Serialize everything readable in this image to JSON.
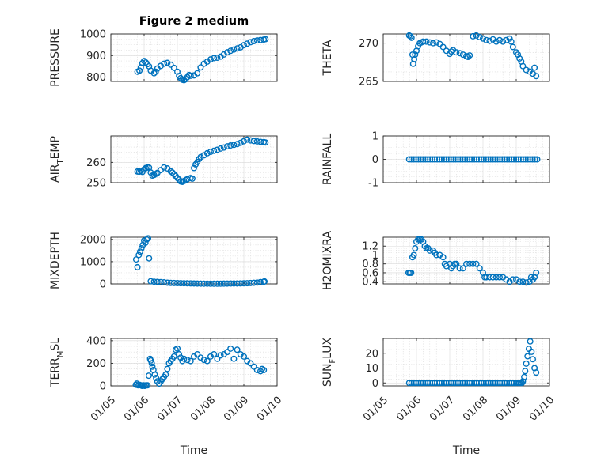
{
  "figure": {
    "title": "Figure 2 medium",
    "marker_color": "#0072bd",
    "xlabel": "Time",
    "x_ticklabels": [
      "01/05",
      "01/06",
      "01/07",
      "01/08",
      "01/09",
      "01/10"
    ]
  },
  "chart_data": [
    {
      "type": "scatter",
      "title": "Figure 2 medium",
      "ylabel": "PRESSURE",
      "xlabel": "",
      "grid": true,
      "ylim": [
        780,
        1000
      ],
      "yticks": [
        800,
        900,
        1000
      ],
      "yticklabels": [
        "800",
        "900",
        "1000"
      ],
      "xlim": [
        "01/05",
        "01/10"
      ],
      "x_unit": "days",
      "x": [
        5.8,
        5.86,
        5.9,
        5.95,
        6.0,
        6.05,
        6.1,
        6.15,
        6.2,
        6.3,
        6.35,
        6.4,
        6.5,
        6.6,
        6.7,
        6.8,
        6.9,
        7.0,
        7.05,
        7.1,
        7.15,
        7.2,
        7.25,
        7.3,
        7.35,
        7.4,
        7.5,
        7.6,
        7.7,
        7.8,
        7.9,
        8.0,
        8.1,
        8.2,
        8.3,
        8.4,
        8.5,
        8.6,
        8.7,
        8.8,
        8.9,
        9.0,
        9.1,
        9.2,
        9.3,
        9.4,
        9.5,
        9.6,
        9.65
      ],
      "y": [
        825,
        830,
        845,
        865,
        875,
        868,
        860,
        850,
        830,
        818,
        825,
        840,
        852,
        862,
        866,
        858,
        843,
        825,
        805,
        795,
        788,
        786,
        790,
        800,
        810,
        806,
        808,
        818,
        845,
        862,
        872,
        882,
        888,
        890,
        895,
        905,
        915,
        922,
        928,
        933,
        938,
        948,
        955,
        962,
        967,
        970,
        972,
        974,
        976
      ]
    },
    {
      "type": "scatter",
      "title": "",
      "ylabel": "THETA",
      "xlabel": "",
      "grid": true,
      "ylim": [
        265,
        271.2
      ],
      "yticks": [
        265,
        270
      ],
      "yticklabels": [
        "265",
        "270"
      ],
      "xlim": [
        "01/05",
        "01/10"
      ],
      "x_unit": "days",
      "x": [
        5.78,
        5.82,
        5.85,
        5.88,
        5.9,
        5.93,
        5.96,
        6.0,
        6.05,
        6.1,
        6.15,
        6.2,
        6.3,
        6.4,
        6.5,
        6.6,
        6.7,
        6.8,
        6.9,
        7.0,
        7.05,
        7.1,
        7.2,
        7.3,
        7.4,
        7.5,
        7.55,
        7.6,
        7.7,
        7.8,
        7.9,
        8.0,
        8.1,
        8.2,
        8.3,
        8.4,
        8.5,
        8.6,
        8.7,
        8.8,
        8.85,
        8.9,
        9.0,
        9.05,
        9.1,
        9.15,
        9.2,
        9.3,
        9.4,
        9.5,
        9.55,
        9.6
      ],
      "y": [
        271,
        270.9,
        270.7,
        268.5,
        267.3,
        267.9,
        268.5,
        269,
        269.6,
        270,
        270.1,
        270.2,
        270.2,
        270.1,
        270,
        270.1,
        269.9,
        269.5,
        269,
        268.6,
        268.9,
        269.1,
        268.8,
        268.7,
        268.5,
        268.3,
        268.2,
        268.4,
        270.9,
        271,
        270.8,
        270.6,
        270.4,
        270.3,
        270.5,
        270.2,
        270.4,
        270.2,
        270.4,
        270.6,
        270.2,
        269.5,
        268.8,
        268.5,
        268,
        267.6,
        267,
        266.5,
        266.3,
        266,
        266.8,
        265.7
      ]
    },
    {
      "type": "scatter",
      "title": "",
      "ylabel": "AIR_TEMP",
      "xlabel": "",
      "grid": true,
      "ylim": [
        250,
        273
      ],
      "yticks": [
        250,
        260
      ],
      "yticklabels": [
        "250",
        "260"
      ],
      "xlim": [
        "01/05",
        "01/10"
      ],
      "x_unit": "days",
      "x": [
        5.8,
        5.85,
        5.9,
        5.95,
        6.0,
        6.05,
        6.1,
        6.15,
        6.2,
        6.25,
        6.3,
        6.35,
        6.4,
        6.5,
        6.6,
        6.7,
        6.8,
        6.85,
        6.9,
        6.95,
        7.0,
        7.05,
        7.1,
        7.15,
        7.2,
        7.25,
        7.3,
        7.4,
        7.45,
        7.5,
        7.55,
        7.6,
        7.65,
        7.7,
        7.8,
        7.9,
        8.0,
        8.1,
        8.2,
        8.3,
        8.4,
        8.5,
        8.6,
        8.7,
        8.8,
        8.9,
        9.0,
        9.1,
        9.2,
        9.3,
        9.4,
        9.5,
        9.6,
        9.65
      ],
      "y": [
        255.5,
        255.4,
        255.8,
        255.3,
        256.5,
        257.2,
        257.5,
        257.4,
        255,
        253.5,
        253.8,
        254.3,
        254.8,
        256.2,
        257.5,
        257,
        255.6,
        255,
        254.2,
        253.3,
        252.3,
        251.5,
        250.6,
        250.4,
        250.8,
        251.3,
        251.7,
        252.3,
        252,
        257.2,
        259,
        260.2,
        261.6,
        262.6,
        263.5,
        264.5,
        265.2,
        265.7,
        266.2,
        266.8,
        267.3,
        267.9,
        268.3,
        268.6,
        269,
        269.6,
        270.4,
        271.2,
        270.8,
        270.5,
        270.3,
        270.1,
        270,
        269.8
      ]
    },
    {
      "type": "scatter",
      "title": "",
      "ylabel": "RAINFALL",
      "xlabel": "",
      "grid": true,
      "ylim": [
        -1,
        1
      ],
      "yticks": [
        -1,
        0,
        1
      ],
      "yticklabels": [
        "-1",
        "0",
        "1"
      ],
      "xlim": [
        "01/05",
        "01/10"
      ],
      "x_unit": "days",
      "series_note": "constant",
      "x": [
        5.78,
        5.85,
        5.92,
        5.99,
        6.06,
        6.13,
        6.2,
        6.27,
        6.34,
        6.41,
        6.48,
        6.55,
        6.62,
        6.69,
        6.76,
        6.83,
        6.9,
        6.97,
        7.04,
        7.11,
        7.18,
        7.25,
        7.32,
        7.39,
        7.46,
        7.53,
        7.6,
        7.67,
        7.74,
        7.81,
        7.88,
        7.95,
        8.02,
        8.09,
        8.16,
        8.23,
        8.3,
        8.37,
        8.44,
        8.51,
        8.58,
        8.65,
        8.72,
        8.79,
        8.86,
        8.93,
        9.0,
        9.07,
        9.14,
        9.21,
        9.28,
        9.35,
        9.42,
        9.49,
        9.56,
        9.63
      ],
      "y": [
        0,
        0,
        0,
        0,
        0,
        0,
        0,
        0,
        0,
        0,
        0,
        0,
        0,
        0,
        0,
        0,
        0,
        0,
        0,
        0,
        0,
        0,
        0,
        0,
        0,
        0,
        0,
        0,
        0,
        0,
        0,
        0,
        0,
        0,
        0,
        0,
        0,
        0,
        0,
        0,
        0,
        0,
        0,
        0,
        0,
        0,
        0,
        0,
        0,
        0,
        0,
        0,
        0,
        0,
        0,
        0
      ]
    },
    {
      "type": "scatter",
      "title": "",
      "ylabel": "MIXDEPTH",
      "xlabel": "",
      "grid": true,
      "ylim": [
        0,
        2100
      ],
      "yticks": [
        0,
        1000,
        2000
      ],
      "yticklabels": [
        "0",
        "1000",
        "2000"
      ],
      "xlim": [
        "01/05",
        "01/10"
      ],
      "x_unit": "days",
      "x": [
        5.76,
        5.8,
        5.84,
        5.88,
        5.92,
        5.96,
        6.0,
        6.04,
        6.08,
        6.12,
        6.15,
        6.2,
        6.3,
        6.4,
        6.5,
        6.6,
        6.7,
        6.8,
        6.9,
        7.0,
        7.1,
        7.2,
        7.3,
        7.4,
        7.5,
        7.6,
        7.7,
        7.8,
        7.9,
        8.0,
        8.1,
        8.2,
        8.3,
        8.4,
        8.5,
        8.6,
        8.7,
        8.8,
        8.9,
        9.0,
        9.1,
        9.2,
        9.3,
        9.4,
        9.5,
        9.6,
        9.62
      ],
      "y": [
        1100,
        750,
        1300,
        1450,
        1600,
        1750,
        1950,
        1850,
        2000,
        2050,
        1150,
        120,
        100,
        90,
        80,
        70,
        55,
        45,
        40,
        35,
        30,
        28,
        25,
        22,
        20,
        15,
        12,
        10,
        10,
        8,
        8,
        8,
        10,
        12,
        15,
        18,
        20,
        20,
        22,
        25,
        30,
        40,
        50,
        60,
        80,
        100,
        110
      ]
    },
    {
      "type": "scatter",
      "title": "",
      "ylabel": "H2OMIXRA",
      "xlabel": "",
      "grid": true,
      "ylim": [
        0.35,
        1.4
      ],
      "yticks": [
        0.4,
        0.6,
        0.8,
        1,
        1.2
      ],
      "yticklabels": [
        "0.4",
        "0.6",
        "0.8",
        "1",
        "1.2"
      ],
      "xlim": [
        "01/05",
        "01/10"
      ],
      "x_unit": "days",
      "x": [
        5.76,
        5.8,
        5.84,
        5.88,
        5.92,
        5.96,
        6.0,
        6.05,
        6.1,
        6.15,
        6.2,
        6.25,
        6.3,
        6.35,
        6.4,
        6.5,
        6.55,
        6.6,
        6.7,
        6.8,
        6.85,
        6.9,
        7.0,
        7.05,
        7.1,
        7.15,
        7.2,
        7.3,
        7.4,
        7.5,
        7.6,
        7.7,
        7.8,
        7.9,
        8.0,
        8.05,
        8.1,
        8.2,
        8.3,
        8.4,
        8.5,
        8.6,
        8.7,
        8.8,
        8.9,
        9.0,
        9.1,
        9.2,
        9.3,
        9.4,
        9.45,
        9.5,
        9.55,
        9.6
      ],
      "y": [
        0.6,
        0.6,
        0.6,
        0.95,
        1.0,
        1.15,
        1.3,
        1.35,
        1.35,
        1.35,
        1.3,
        1.2,
        1.15,
        1.15,
        1.1,
        1.1,
        1.05,
        1.0,
        1.0,
        0.95,
        0.8,
        0.75,
        0.8,
        0.7,
        0.75,
        0.8,
        0.8,
        0.7,
        0.7,
        0.8,
        0.8,
        0.8,
        0.8,
        0.7,
        0.6,
        0.5,
        0.5,
        0.5,
        0.5,
        0.5,
        0.5,
        0.5,
        0.45,
        0.4,
        0.45,
        0.45,
        0.4,
        0.4,
        0.38,
        0.4,
        0.5,
        0.45,
        0.5,
        0.6
      ]
    },
    {
      "type": "scatter",
      "title": "",
      "ylabel": "TERR_MSL",
      "xlabel": "Time",
      "grid": true,
      "ylim": [
        0,
        420
      ],
      "yticks": [
        0,
        200,
        400
      ],
      "yticklabels": [
        "0",
        "200",
        "400"
      ],
      "xlim": [
        "01/05",
        "01/10"
      ],
      "x_unit": "days",
      "xticklabels": [
        "01/05",
        "01/06",
        "01/07",
        "01/08",
        "01/09",
        "01/10"
      ],
      "x": [
        5.75,
        5.78,
        5.82,
        5.86,
        5.9,
        5.94,
        5.98,
        6.02,
        6.06,
        6.1,
        6.14,
        6.18,
        6.2,
        6.23,
        6.25,
        6.28,
        6.32,
        6.36,
        6.4,
        6.45,
        6.5,
        6.55,
        6.6,
        6.65,
        6.7,
        6.75,
        6.8,
        6.85,
        6.9,
        6.95,
        7.0,
        7.05,
        7.1,
        7.15,
        7.2,
        7.3,
        7.4,
        7.5,
        7.6,
        7.7,
        7.8,
        7.9,
        8.0,
        8.1,
        8.2,
        8.3,
        8.4,
        8.5,
        8.6,
        8.7,
        8.8,
        8.9,
        9.0,
        9.1,
        9.2,
        9.3,
        9.4,
        9.5,
        9.55,
        9.6
      ],
      "y": [
        10,
        20,
        5,
        10,
        5,
        0,
        5,
        0,
        5,
        5,
        90,
        240,
        225,
        200,
        170,
        140,
        100,
        70,
        40,
        20,
        40,
        60,
        80,
        100,
        150,
        200,
        220,
        240,
        260,
        320,
        330,
        280,
        250,
        220,
        240,
        230,
        220,
        260,
        280,
        250,
        230,
        220,
        260,
        280,
        240,
        270,
        280,
        300,
        330,
        240,
        320,
        280,
        260,
        220,
        200,
        170,
        140,
        130,
        150,
        140
      ]
    },
    {
      "type": "scatter",
      "title": "",
      "ylabel": "SUN_FLUX",
      "xlabel": "Time",
      "grid": true,
      "ylim": [
        -2,
        30
      ],
      "yticks": [
        0,
        10,
        20
      ],
      "yticklabels": [
        "0",
        "10",
        "20"
      ],
      "xlim": [
        "01/05",
        "01/10"
      ],
      "x_unit": "days",
      "xticklabels": [
        "01/05",
        "01/06",
        "01/07",
        "01/08",
        "01/09",
        "01/10"
      ],
      "x": [
        5.78,
        5.85,
        5.92,
        5.99,
        6.06,
        6.13,
        6.2,
        6.27,
        6.34,
        6.41,
        6.48,
        6.55,
        6.62,
        6.69,
        6.76,
        6.83,
        6.9,
        6.97,
        7.04,
        7.11,
        7.18,
        7.25,
        7.32,
        7.39,
        7.46,
        7.53,
        7.6,
        7.67,
        7.74,
        7.81,
        7.88,
        7.95,
        8.02,
        8.09,
        8.16,
        8.23,
        8.3,
        8.37,
        8.44,
        8.51,
        8.58,
        8.65,
        8.72,
        8.79,
        8.86,
        8.93,
        9.0,
        9.07,
        9.1,
        9.14,
        9.17,
        9.2,
        9.24,
        9.27,
        9.3,
        9.34,
        9.38,
        9.42,
        9.46,
        9.5,
        9.55,
        9.6
      ],
      "y": [
        0,
        0,
        0,
        0,
        0,
        0,
        0,
        0,
        0,
        0,
        0,
        0,
        0,
        0,
        0,
        0,
        0,
        0,
        0,
        0,
        0,
        0,
        0,
        0,
        0,
        0,
        0,
        0,
        0,
        0,
        0,
        0,
        0,
        0,
        0,
        0,
        0,
        0,
        0,
        0,
        0,
        0,
        0,
        0,
        0,
        0,
        0,
        0,
        0,
        0,
        0,
        1,
        4,
        8,
        13,
        18,
        23,
        28,
        21,
        16,
        10,
        7
      ]
    }
  ]
}
